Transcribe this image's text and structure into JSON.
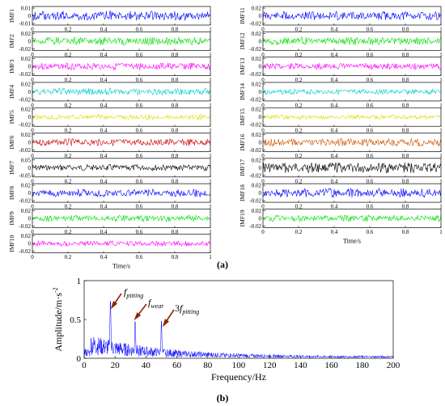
{
  "figure": {
    "label_a": "(a)",
    "label_b": "(b)"
  },
  "imf_panels": {
    "x_ticks": [
      "0",
      "0.2",
      "0.4",
      "0.6",
      "0.8",
      "1"
    ],
    "xlabel": "Time/s",
    "left": [
      {
        "name": "IMF1",
        "ticks": [
          "0.01",
          "0",
          "-0.01"
        ],
        "color": "#0000ff",
        "amp": 0.55,
        "seed": 1
      },
      {
        "name": "IMF2",
        "ticks": [
          "0.02",
          "0",
          "-0.02"
        ],
        "color": "#00dd00",
        "amp": 0.45,
        "seed": 2
      },
      {
        "name": "IMF3",
        "ticks": [
          "0.02",
          "0",
          "-0.02"
        ],
        "color": "#ff00ff",
        "amp": 0.4,
        "seed": 3
      },
      {
        "name": "IMF4",
        "ticks": [
          "0.02",
          "0",
          "-0.02"
        ],
        "color": "#00cccc",
        "amp": 0.4,
        "seed": 4
      },
      {
        "name": "IMF5",
        "ticks": [
          "0.02",
          "0",
          "-0.02"
        ],
        "color": "#dddd00",
        "amp": 0.3,
        "seed": 5
      },
      {
        "name": "IMF6",
        "ticks": [
          "0.02",
          "0",
          "-0.02"
        ],
        "color": "#cc0000",
        "amp": 0.4,
        "seed": 6
      },
      {
        "name": "IMF7",
        "ticks": [
          "0.05",
          "0",
          "-0.05"
        ],
        "color": "#000000",
        "amp": 0.35,
        "seed": 7
      },
      {
        "name": "IMF8",
        "ticks": [
          "0.02",
          "0",
          "-0.02"
        ],
        "color": "#0000ff",
        "amp": 0.45,
        "seed": 8
      },
      {
        "name": "IMF9",
        "ticks": [
          "0.02",
          "0",
          "-0.02"
        ],
        "color": "#00dd00",
        "amp": 0.35,
        "seed": 9
      },
      {
        "name": "IMF10",
        "ticks": [
          "0.02",
          "0",
          "-0.02"
        ],
        "color": "#ff00ff",
        "amp": 0.3,
        "seed": 10
      }
    ],
    "right": [
      {
        "name": "IMF11",
        "ticks": [
          "0.02",
          "0",
          "-0.02"
        ],
        "color": "#0000ff",
        "amp": 0.5,
        "seed": 11
      },
      {
        "name": "IMF12",
        "ticks": [
          "0.02",
          "0",
          "-0.02"
        ],
        "color": "#00dd00",
        "amp": 0.45,
        "seed": 12
      },
      {
        "name": "IMF13",
        "ticks": [
          "0.02",
          "0",
          "-0.02"
        ],
        "color": "#ff00ff",
        "amp": 0.35,
        "seed": 13
      },
      {
        "name": "IMF14",
        "ticks": [
          "0.02",
          "0",
          "-0.02"
        ],
        "color": "#00cccc",
        "amp": 0.3,
        "seed": 14
      },
      {
        "name": "IMF15",
        "ticks": [
          "0.02",
          "0",
          "-0.02"
        ],
        "color": "#dddd00",
        "amp": 0.25,
        "seed": 15
      },
      {
        "name": "IMF16",
        "ticks": [
          "0.02",
          "0",
          "-0.02"
        ],
        "color": "#cc5500",
        "amp": 0.45,
        "seed": 16
      },
      {
        "name": "IMF17",
        "ticks": [
          "0.02",
          "0",
          "-0.02"
        ],
        "color": "#000000",
        "amp": 0.6,
        "seed": 17
      },
      {
        "name": "IMF18",
        "ticks": [
          "0.02",
          "0",
          "-0.02"
        ],
        "color": "#0000ff",
        "amp": 0.5,
        "seed": 18
      },
      {
        "name": "IMF19",
        "ticks": [
          "0.02",
          "0",
          "-0.02"
        ],
        "color": "#00dd00",
        "amp": 0.35,
        "seed": 19
      }
    ]
  },
  "chart_data": {
    "type": "line",
    "title": "",
    "xlabel": "Frequency/Hz",
    "ylabel": "Amplitude/m·s",
    "ylabel_sup": "-2",
    "xlim": [
      0,
      200
    ],
    "ylim": [
      0,
      1
    ],
    "x_ticks": [
      0,
      20,
      40,
      60,
      80,
      100,
      120,
      140,
      160,
      180,
      200
    ],
    "y_ticks": [
      0,
      0.5,
      1
    ],
    "y_tick_labels": [
      "0",
      "0.5",
      "1"
    ],
    "series_color": "#0000ff",
    "peaks": [
      {
        "x": 17,
        "y": 0.78
      },
      {
        "x": 33,
        "y": 0.5
      },
      {
        "x": 50,
        "y": 0.48
      }
    ],
    "annotations": [
      {
        "base": "f",
        "sub": "pitting",
        "prefix": "",
        "x": 17,
        "y": 0.78
      },
      {
        "base": "f",
        "sub": "wear",
        "prefix": "",
        "x": 33,
        "y": 0.5
      },
      {
        "base": "f",
        "sub": "pitting",
        "prefix": "3",
        "x": 50,
        "y": 0.48
      }
    ]
  }
}
